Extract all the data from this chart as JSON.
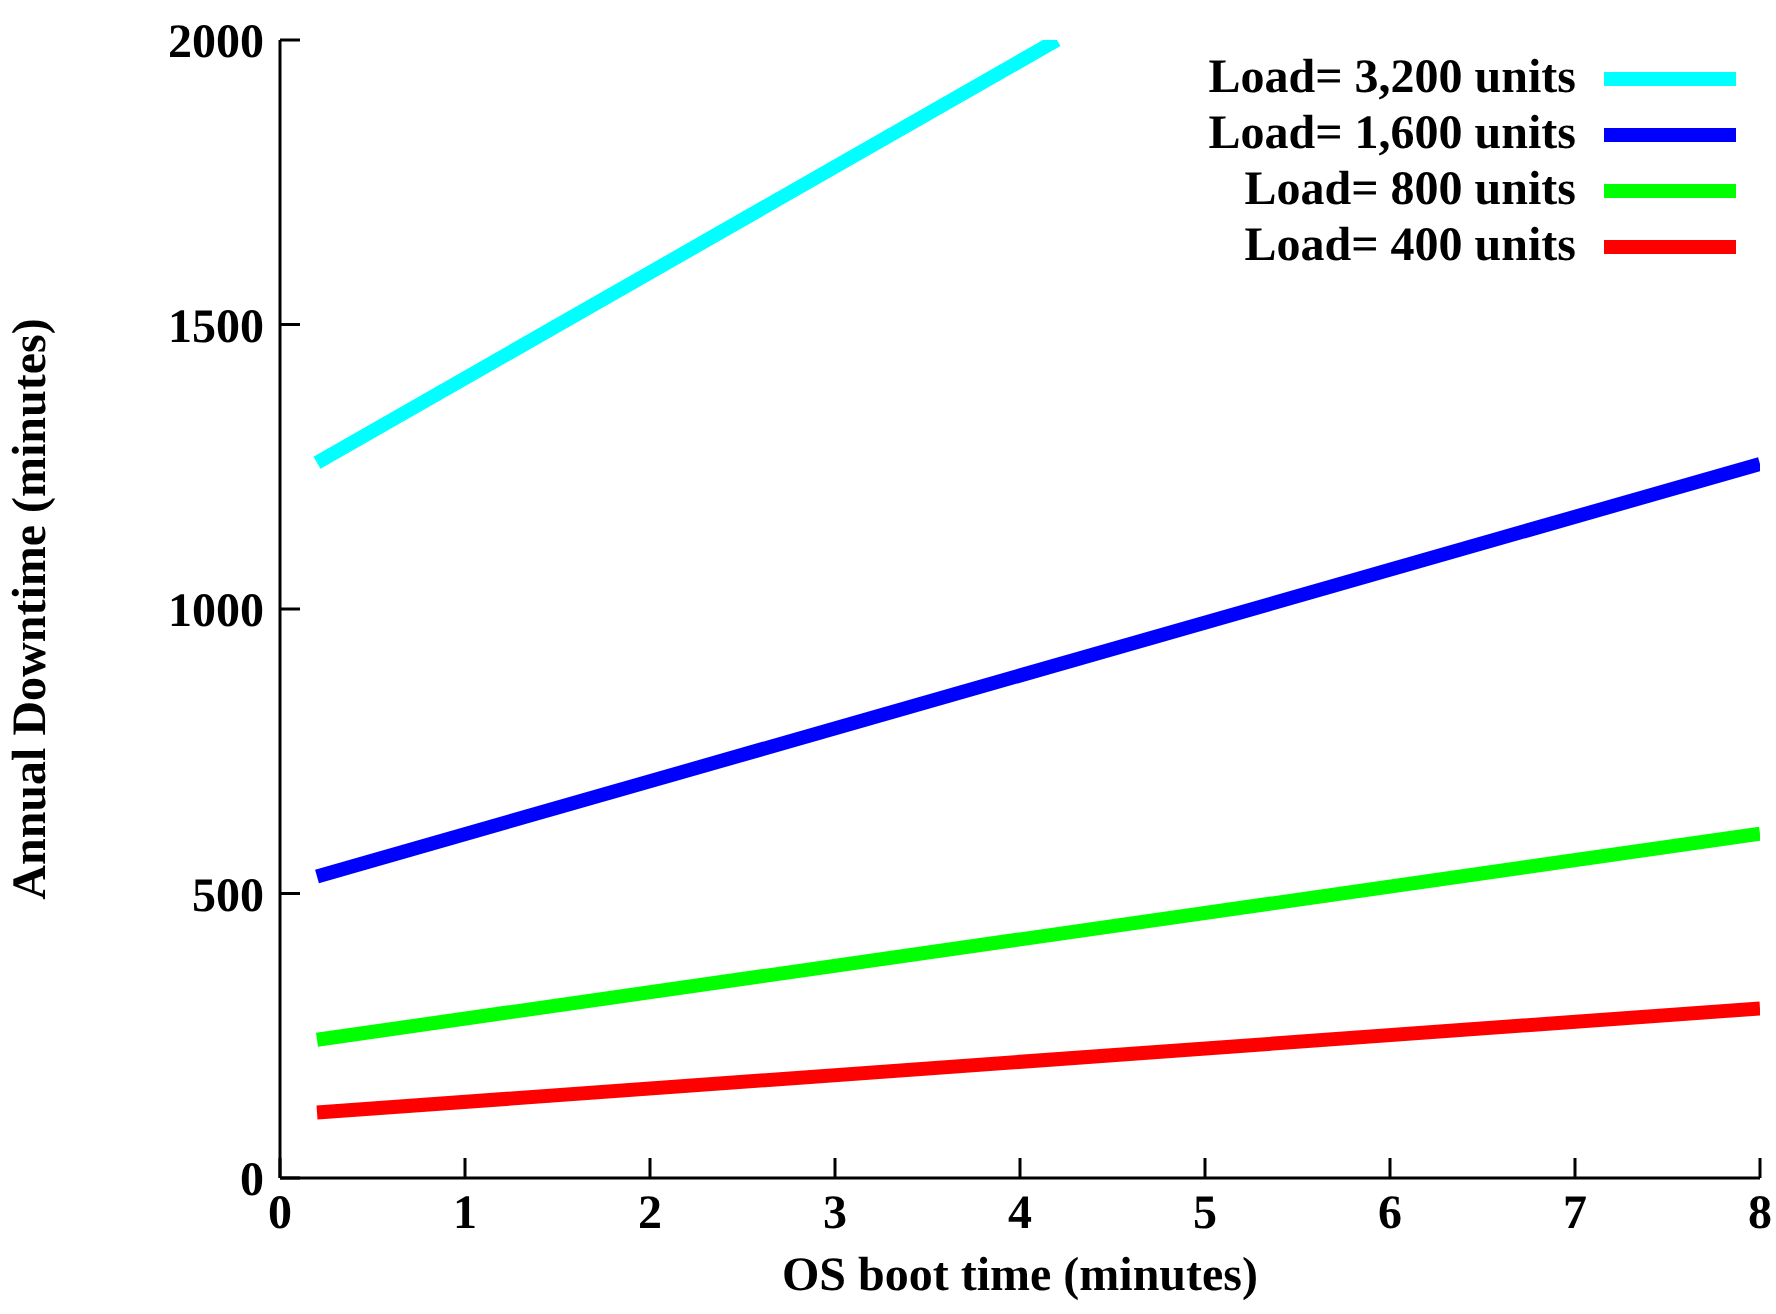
{
  "chart_data": {
    "type": "line",
    "xlabel": "OS boot time (minutes)",
    "ylabel": "Annual Downtime (minutes)",
    "xlim": [
      0,
      8
    ],
    "xticks": [
      0,
      1,
      2,
      3,
      4,
      5,
      6,
      7,
      8
    ],
    "ylim": [
      0,
      2000
    ],
    "yticks": [
      0,
      500,
      1000,
      1500,
      2000
    ],
    "grid": false,
    "legend": "top right",
    "marker": "none",
    "line_style": "solid",
    "series": [
      {
        "name": "Load= 3,200 units",
        "color": "#00ffff",
        "x": [
          0.2,
          4.2
        ],
        "values": [
          1257,
          2000
        ]
      },
      {
        "name": "Load= 1,600 units",
        "color": "#0000ff",
        "x": [
          0.2,
          8
        ],
        "values": [
          530,
          1255
        ]
      },
      {
        "name": "Load= 800 units",
        "color": "#00ff00",
        "x": [
          0.2,
          8
        ],
        "values": [
          243,
          605
        ]
      },
      {
        "name": "Load= 400 units",
        "color": "#ff0000",
        "x": [
          0.2,
          8
        ],
        "values": [
          115,
          298
        ]
      }
    ]
  }
}
